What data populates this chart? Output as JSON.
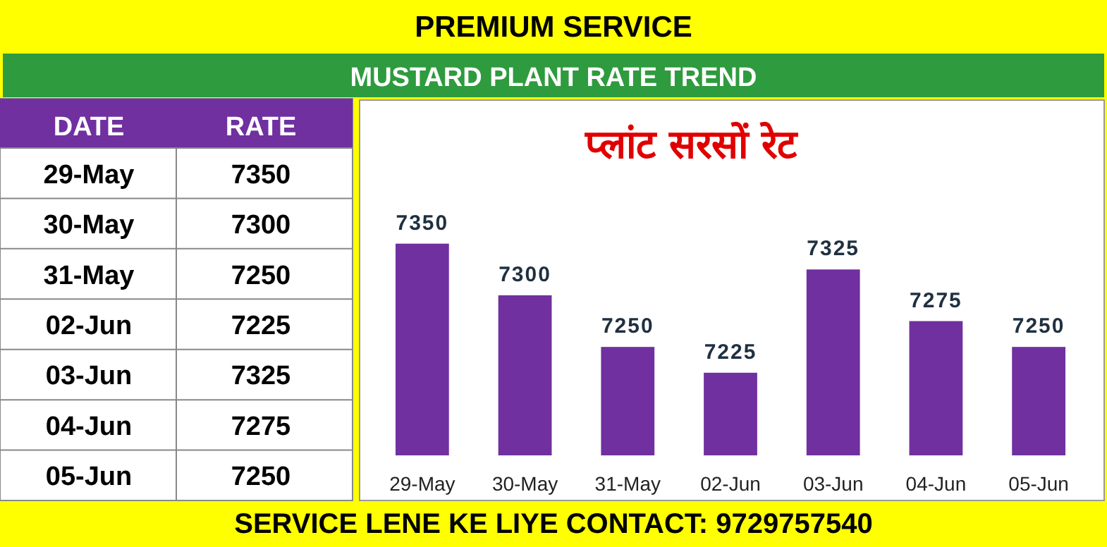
{
  "chart_data": [
    {
      "type": "other",
      "annotations": [
        "DATE",
        "RATE",
        "29-May",
        "7350",
        "30-May",
        "7300",
        "31-May",
        "7250",
        "02-Jun",
        "7225",
        "03-Jun",
        "7325",
        "04-Jun",
        "7275",
        "05-Jun",
        "7250"
      ]
    },
    {
      "type": "bar",
      "title": "PREMIUM SERVICE",
      "subtitle": "MUSTARD PLANT RATE TREND",
      "annotations": [
        "प्लांट सरसों रेट",
        "SERVICE LENE KE LIYE CONTACT: 9729757540"
      ],
      "categories": [
        "29-May",
        "30-May",
        "31-May",
        "02-Jun",
        "03-Jun",
        "04-Jun",
        "05-Jun"
      ],
      "values": [
        7350,
        7300,
        7250,
        7225,
        7325,
        7275,
        7250
      ],
      "color": "#7030a0",
      "ylim": [
        7145,
        7489
      ],
      "data_labels": true,
      "tick_labels": "x"
    }
  ]
}
